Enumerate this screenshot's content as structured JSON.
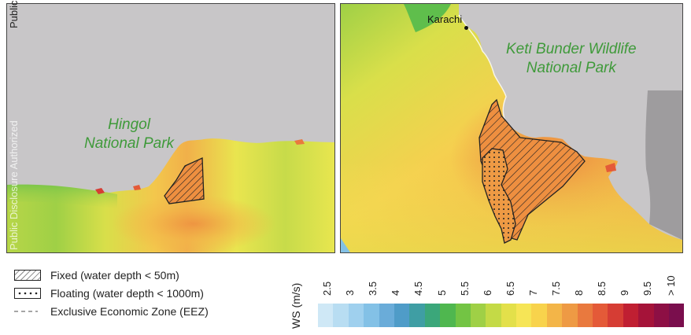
{
  "watermark": {
    "top_text": "Public",
    "side_text": "Public Disclosure Authorized"
  },
  "left_map": {
    "park_label_line1": "Hingol",
    "park_label_line2": "National Park"
  },
  "right_map": {
    "city_label": "Karachi",
    "park_label_line1": "Keti Bunder Wildlife",
    "park_label_line2": "National Park"
  },
  "legend": {
    "fixed": "Fixed (water depth < 50m)",
    "floating": "Floating (water depth < 1000m)",
    "eez": "Exclusive Economic Zone (EEZ)"
  },
  "colorbar": {
    "title": "WS (m/s)",
    "ticks": [
      "2.5",
      "3",
      "3.5",
      "4",
      "4.5",
      "5",
      "5.5",
      "6",
      "6.5",
      "7",
      "7.5",
      "8",
      "8.5",
      "9",
      "9.5",
      "> 10"
    ],
    "colors": [
      "#cfe8f6",
      "#b8ddf2",
      "#9fd0ee",
      "#83c1e6",
      "#6aacd9",
      "#4f9cc8",
      "#3f9ea4",
      "#3ba77a",
      "#4fb74f",
      "#73c444",
      "#9fd046",
      "#c4da46",
      "#e3e04a",
      "#f6e556",
      "#f8d34c",
      "#f3b548",
      "#ee9a44",
      "#e9793e",
      "#e45a38",
      "#d63d34",
      "#c01f32",
      "#a51339",
      "#8d0f44",
      "#7a0e4d"
    ]
  },
  "colors": {
    "land": "#c8c6c8",
    "park_label": "#3f9a3a",
    "hatch": "#222222"
  }
}
